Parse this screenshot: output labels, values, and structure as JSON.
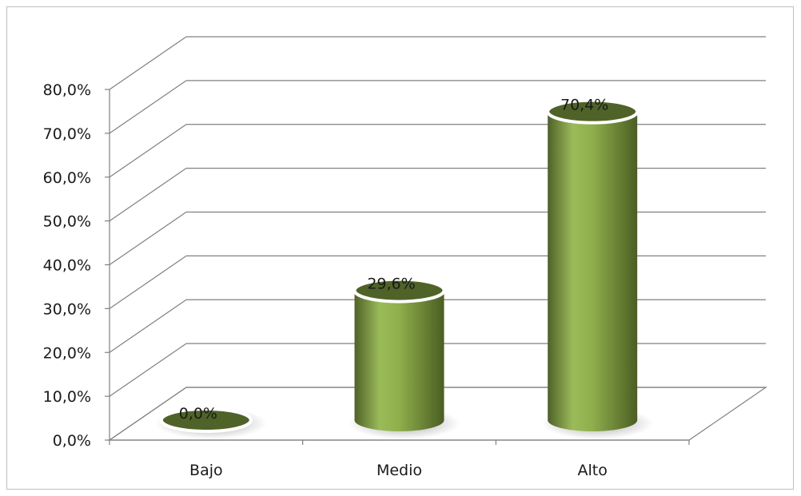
{
  "chart_data": {
    "type": "bar",
    "style": "3d-cylinder",
    "categories": [
      "Bajo",
      "Medio",
      "Alto"
    ],
    "values": [
      0.0,
      29.6,
      70.4
    ],
    "data_labels": [
      "0,0%",
      "29,6%",
      "70,4%"
    ],
    "ylim": [
      0,
      80
    ],
    "y_ticks": [
      0,
      10,
      20,
      30,
      40,
      50,
      60,
      70,
      80
    ],
    "y_tick_labels": [
      "0,0%",
      "10,0%",
      "20,0%",
      "30,0%",
      "40,0%",
      "50,0%",
      "60,0%",
      "70,0%",
      "80,0%"
    ],
    "title": "",
    "xlabel": "",
    "ylabel": "",
    "grid": true,
    "legend": "none",
    "colors": {
      "bar": "#77933c",
      "bar_dark": "#4f6228",
      "bar_top": "#4f6228",
      "grid": "#808080"
    }
  }
}
